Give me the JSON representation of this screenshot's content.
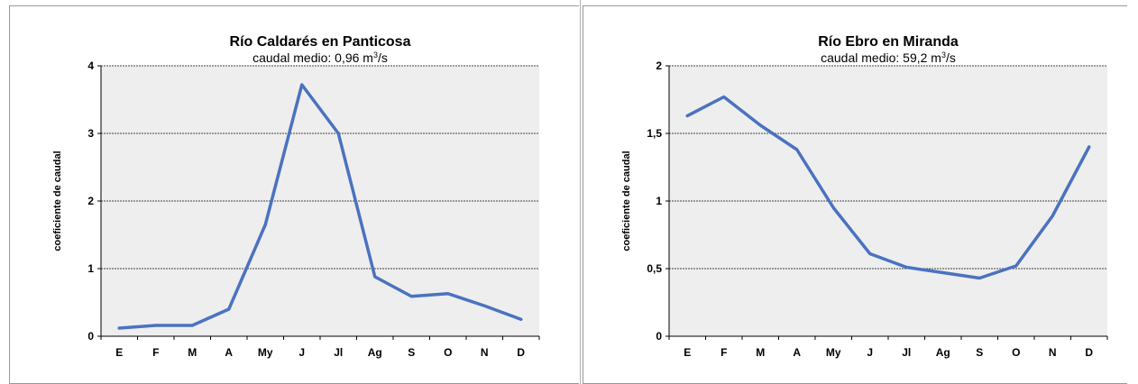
{
  "chart_data": [
    {
      "type": "line",
      "title": "Río Caldarés en Panticosa",
      "subtitle_prefix": "caudal medio: 0,96 m",
      "subtitle_sup": "3",
      "subtitle_suffix": "/s",
      "ylabel": "coeficiente de caudal",
      "xlabel": "",
      "categories": [
        "E",
        "F",
        "M",
        "A",
        "My",
        "J",
        "Jl",
        "Ag",
        "S",
        "O",
        "N",
        "D"
      ],
      "ylim": [
        0,
        4
      ],
      "yticks": [
        0,
        1,
        2,
        3,
        4
      ],
      "ytick_labels": [
        "0",
        "1",
        "2",
        "3",
        "4"
      ],
      "grid": true,
      "series": [
        {
          "values": [
            0.12,
            0.16,
            0.16,
            0.4,
            1.65,
            3.72,
            3.0,
            0.88,
            0.59,
            0.63,
            0.45,
            0.25
          ]
        }
      ]
    },
    {
      "type": "line",
      "title": "Río Ebro en Miranda",
      "subtitle_prefix": "caudal medio: 59,2 m",
      "subtitle_sup": "3",
      "subtitle_suffix": "/s",
      "ylabel": "coeficiente de caudal",
      "xlabel": "",
      "categories": [
        "E",
        "F",
        "M",
        "A",
        "My",
        "J",
        "Jl",
        "Ag",
        "S",
        "O",
        "N",
        "D"
      ],
      "ylim": [
        0,
        2
      ],
      "yticks": [
        0,
        0.5,
        1,
        1.5,
        2
      ],
      "ytick_labels": [
        "0",
        "0,5",
        "1",
        "1,5",
        "2"
      ],
      "grid": true,
      "series": [
        {
          "values": [
            1.63,
            1.77,
            1.56,
            1.38,
            0.95,
            0.61,
            0.51,
            0.47,
            0.43,
            0.52,
            0.89,
            1.4
          ]
        }
      ]
    }
  ],
  "style": {
    "line_color": "#4a72c0",
    "plot_bg": "#eeeeee",
    "grid_color": "#444444",
    "axis_color": "#000000"
  }
}
